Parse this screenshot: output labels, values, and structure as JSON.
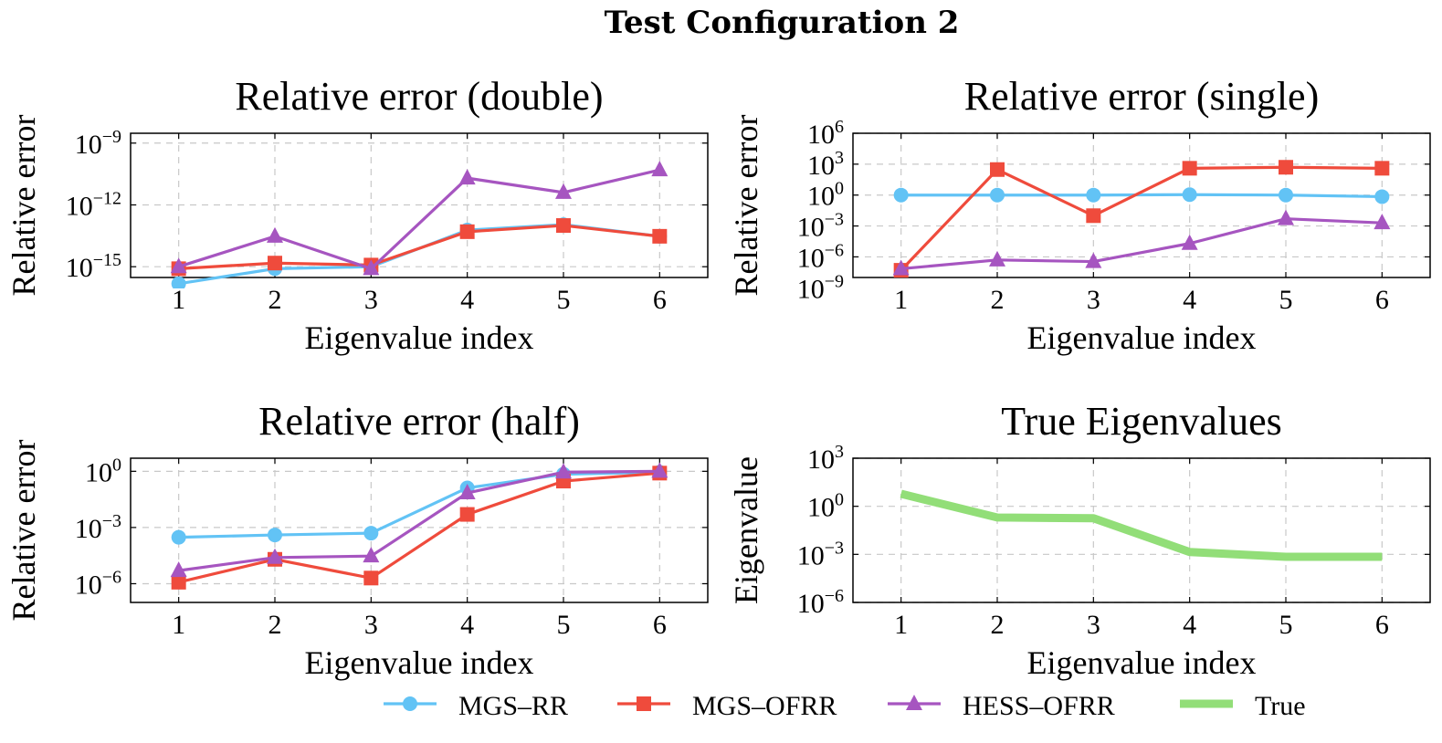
{
  "figure": {
    "title": "Test Configuration 2"
  },
  "colors": {
    "MGS–RR": "#62c3f5",
    "MGS–OFRR": "#ef4b3c",
    "HESS–OFRR": "#a655c0",
    "True": "#92de78"
  },
  "legend": {
    "placement": "bottom-center",
    "entries": [
      {
        "name": "MGS–RR",
        "marker": "circle"
      },
      {
        "name": "MGS–OFRR",
        "marker": "square"
      },
      {
        "name": "HESS–OFRR",
        "marker": "triangle"
      },
      {
        "name": "True",
        "marker": "thick-line"
      }
    ]
  },
  "chart_data": [
    {
      "type": "line",
      "title": "Relative error (double)",
      "xlabel": "Eigenvalue index",
      "ylabel": "Relative error",
      "yscale": "log",
      "grid": true,
      "x": [
        1,
        2,
        3,
        4,
        5,
        6
      ],
      "xlim": [
        0.5,
        6.5
      ],
      "ylim": [
        3e-16,
        3e-09
      ],
      "yticks": [
        {
          "value": 1e-09,
          "label": "10^{-9}"
        },
        {
          "value": 1e-12,
          "label": "10^{-12}"
        },
        {
          "value": 1e-15,
          "label": "10^{-15}"
        }
      ],
      "series": [
        {
          "name": "MGS–RR",
          "values": [
            1.5e-16,
            8e-16,
            1e-15,
            6e-14,
            1.1e-13,
            3e-14
          ]
        },
        {
          "name": "MGS–OFRR",
          "values": [
            8e-16,
            1.5e-15,
            1.2e-15,
            5e-14,
            1e-13,
            3e-14
          ]
        },
        {
          "name": "HESS–OFRR",
          "values": [
            1e-15,
            3e-14,
            8e-16,
            2e-11,
            4e-12,
            5e-11
          ]
        }
      ]
    },
    {
      "type": "line",
      "title": "Relative error (single)",
      "xlabel": "Eigenvalue index",
      "ylabel": "Relative error",
      "yscale": "log",
      "grid": true,
      "x": [
        1,
        2,
        3,
        4,
        5,
        6
      ],
      "xlim": [
        0.5,
        6.5
      ],
      "ylim": [
        1e-08,
        1000000.0
      ],
      "yticks": [
        {
          "value": 1000000.0,
          "label": "10^{6}"
        },
        {
          "value": 1000.0,
          "label": "10^{3}"
        },
        {
          "value": 1,
          "label": "10^{0}"
        },
        {
          "value": 0.001,
          "label": "10^{-3}"
        },
        {
          "value": 1e-06,
          "label": "10^{-6}"
        },
        {
          "value": 1e-09,
          "label": "10^{-9}"
        }
      ],
      "series": [
        {
          "name": "MGS–RR",
          "values": [
            1,
            1,
            1,
            1.1,
            1,
            0.7
          ]
        },
        {
          "name": "MGS–OFRR",
          "values": [
            5e-08,
            300,
            0.01,
            400,
            500,
            400
          ]
        },
        {
          "name": "HESS–OFRR",
          "values": [
            7e-08,
            5e-07,
            3.5e-07,
            2e-05,
            0.005,
            0.002
          ]
        }
      ]
    },
    {
      "type": "line",
      "title": "Relative error (half)",
      "xlabel": "Eigenvalue index",
      "ylabel": "Relative error",
      "yscale": "log",
      "grid": true,
      "x": [
        1,
        2,
        3,
        4,
        5,
        6
      ],
      "xlim": [
        0.5,
        6.5
      ],
      "ylim": [
        1e-07,
        5
      ],
      "yticks": [
        {
          "value": 1,
          "label": "10^{0}"
        },
        {
          "value": 0.001,
          "label": "10^{-3}"
        },
        {
          "value": 1e-06,
          "label": "10^{-6}"
        }
      ],
      "series": [
        {
          "name": "MGS–RR",
          "values": [
            0.0003,
            0.0004,
            0.0005,
            0.13,
            0.7,
            0.9
          ]
        },
        {
          "name": "MGS–OFRR",
          "values": [
            1.2e-06,
            2e-05,
            2e-06,
            0.005,
            0.3,
            0.8
          ]
        },
        {
          "name": "HESS–OFRR",
          "values": [
            5e-06,
            2.5e-05,
            3e-05,
            0.07,
            0.9,
            1
          ]
        }
      ]
    },
    {
      "type": "line",
      "title": "True Eigenvalues",
      "xlabel": "Eigenvalue index",
      "ylabel": "Eigenvalue",
      "yscale": "log",
      "grid": true,
      "x": [
        1,
        2,
        3,
        4,
        5,
        6
      ],
      "xlim": [
        0.5,
        6.5
      ],
      "ylim": [
        1e-06,
        1000.0
      ],
      "yticks": [
        {
          "value": 1000.0,
          "label": "10^{3}"
        },
        {
          "value": 1,
          "label": "10^{0}"
        },
        {
          "value": 0.001,
          "label": "10^{-3}"
        },
        {
          "value": 1e-06,
          "label": "10^{-6}"
        }
      ],
      "series": [
        {
          "name": "True",
          "values": [
            6,
            0.2,
            0.18,
            0.0014,
            0.0007,
            0.0007
          ]
        }
      ]
    }
  ]
}
